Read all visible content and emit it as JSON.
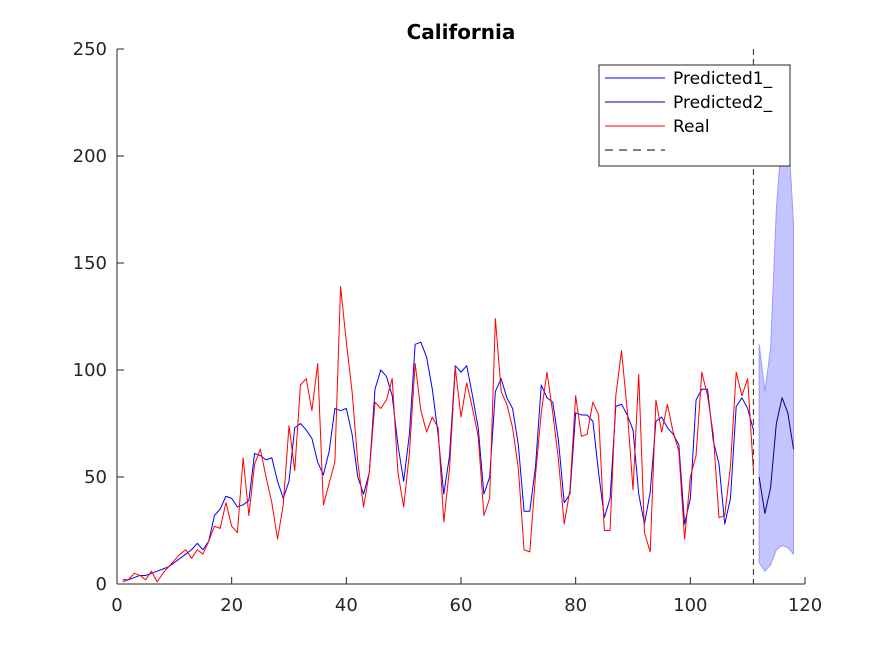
{
  "chart_data": {
    "type": "line",
    "title": "California",
    "xlabel": "",
    "ylabel": "",
    "xlim": [
      0,
      120
    ],
    "ylim": [
      0,
      250
    ],
    "xticks": [
      0,
      20,
      40,
      60,
      80,
      100,
      120
    ],
    "yticks": [
      0,
      50,
      100,
      150,
      200,
      250
    ],
    "grid": false,
    "legend_position": "top-right",
    "vline_x": 111,
    "series": [
      {
        "name": "Predicted1_",
        "color": "#0000ff",
        "x": [
          1,
          2,
          3,
          4,
          5,
          6,
          7,
          8,
          9,
          10,
          11,
          12,
          13,
          14,
          15,
          16,
          17,
          18,
          19,
          20,
          21,
          22,
          23,
          24,
          25,
          26,
          27,
          28,
          29,
          30,
          31,
          32,
          33,
          34,
          35,
          36,
          37,
          38,
          39,
          40,
          41,
          42,
          43,
          44,
          45,
          46,
          47,
          48,
          49,
          50,
          51,
          52,
          53,
          54,
          55,
          56,
          57,
          58,
          59,
          60,
          61,
          62,
          63,
          64,
          65,
          66,
          67,
          68,
          69,
          70,
          71,
          72,
          73,
          74,
          75,
          76,
          77,
          78,
          79,
          80,
          81,
          82,
          83,
          84,
          85,
          86,
          87,
          88,
          89,
          90,
          91,
          92,
          93,
          94,
          95,
          96,
          97,
          98,
          99,
          100,
          101,
          102,
          103,
          104,
          105,
          106,
          107,
          108,
          109,
          110,
          111
        ],
        "y": [
          2,
          2,
          3,
          4,
          4,
          5,
          6,
          7,
          8,
          10,
          12,
          14,
          16,
          19,
          16,
          20,
          32,
          35,
          41,
          40,
          36,
          37,
          39,
          61,
          60,
          58,
          59,
          48,
          40,
          48,
          73,
          75,
          72,
          68,
          57,
          51,
          62,
          82,
          81,
          82,
          70,
          50,
          42,
          52,
          91,
          100,
          97,
          88,
          65,
          48,
          70,
          112,
          113,
          106,
          91,
          70,
          42,
          60,
          102,
          99,
          102,
          88,
          73,
          42,
          50,
          90,
          96,
          87,
          82,
          65,
          34,
          34,
          55,
          93,
          87,
          85,
          67,
          38,
          42,
          80,
          79,
          79,
          76,
          52,
          31,
          40,
          83,
          84,
          79,
          72,
          42,
          28,
          43,
          76,
          78,
          73,
          70,
          65,
          28,
          40,
          86,
          91,
          91,
          67,
          56,
          28,
          40,
          83,
          87,
          82,
          72
        ]
      },
      {
        "name": "Predicted2_",
        "color": "#00008b",
        "x": [
          112,
          113,
          114,
          115,
          116,
          117,
          118
        ],
        "y": [
          50,
          33,
          45,
          75,
          87,
          80,
          63
        ]
      },
      {
        "name": "Real",
        "color": "#ff0000",
        "x": [
          1,
          2,
          3,
          4,
          5,
          6,
          7,
          8,
          9,
          10,
          11,
          12,
          13,
          14,
          15,
          16,
          17,
          18,
          19,
          20,
          21,
          22,
          23,
          24,
          25,
          26,
          27,
          28,
          29,
          30,
          31,
          32,
          33,
          34,
          35,
          36,
          37,
          38,
          39,
          40,
          41,
          42,
          43,
          44,
          45,
          46,
          47,
          48,
          49,
          50,
          51,
          52,
          53,
          54,
          55,
          56,
          57,
          58,
          59,
          60,
          61,
          62,
          63,
          64,
          65,
          66,
          67,
          68,
          69,
          70,
          71,
          72,
          73,
          74,
          75,
          76,
          77,
          78,
          79,
          80,
          81,
          82,
          83,
          84,
          85,
          86,
          87,
          88,
          89,
          90,
          91,
          92,
          93,
          94,
          95,
          96,
          97,
          98,
          99,
          100,
          101,
          102,
          103,
          104,
          105,
          106,
          107,
          108,
          109,
          110,
          111
        ],
        "y": [
          1,
          2,
          5,
          4,
          2,
          6,
          1,
          5,
          8,
          11,
          14,
          16,
          12,
          16,
          14,
          20,
          27,
          26,
          38,
          27,
          24,
          59,
          32,
          56,
          63,
          50,
          38,
          21,
          37,
          74,
          53,
          93,
          96,
          81,
          103,
          37,
          47,
          57,
          139,
          113,
          90,
          57,
          36,
          52,
          85,
          82,
          86,
          96,
          52,
          36,
          61,
          103,
          81,
          71,
          78,
          73,
          29,
          54,
          101,
          78,
          94,
          82,
          69,
          32,
          40,
          124,
          90,
          84,
          73,
          54,
          16,
          15,
          51,
          80,
          99,
          80,
          58,
          28,
          44,
          88,
          69,
          70,
          85,
          79,
          25,
          25,
          88,
          109,
          81,
          44,
          98,
          24,
          15,
          86,
          71,
          84,
          71,
          62,
          21,
          50,
          60,
          99,
          88,
          70,
          31,
          32,
          55,
          99,
          88,
          96,
          53
        ]
      },
      {
        "name": "",
        "color": "#000000",
        "style": "dashed"
      }
    ],
    "confidence_band": {
      "color": "#c4c4ff",
      "x": [
        112,
        113,
        114,
        115,
        116,
        117,
        118
      ],
      "upper": [
        112,
        90,
        110,
        175,
        210,
        215,
        168
      ],
      "lower": [
        10,
        6,
        9,
        16,
        18,
        17,
        14
      ]
    }
  }
}
